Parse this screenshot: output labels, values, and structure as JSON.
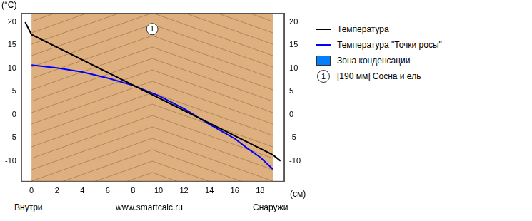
{
  "chart_data": {
    "type": "line",
    "x_label": "(см)",
    "y_label": "(°C)",
    "bottom_labels": [
      "Внутри",
      "www.smartcalc.ru",
      "Снаружи"
    ],
    "xlim": [
      -0.8,
      19.9
    ],
    "xticks": [
      0,
      2,
      4,
      6,
      8,
      10,
      12,
      14,
      16,
      18
    ],
    "ylim": [
      -14.5,
      22
    ],
    "yticks": [
      -10,
      -5,
      0,
      5,
      10,
      15,
      20
    ],
    "grid": false,
    "legend": "right",
    "series": [
      {
        "name": "Температура",
        "color": "#000000",
        "type": "line",
        "x": [
          -0.5,
          0,
          19,
          19.6
        ],
        "values": [
          20,
          17.3,
          -8.7,
          -10
        ]
      },
      {
        "name": "Температура \"Точки росы\"",
        "color": "#0000ff",
        "type": "line",
        "x": [
          0,
          2,
          4,
          6,
          8,
          10,
          12,
          14,
          16,
          17,
          18,
          19
        ],
        "values": [
          10.7,
          10.1,
          9.2,
          7.9,
          6.3,
          4.1,
          1.3,
          -2.1,
          -5.2,
          -7.3,
          -9.2,
          -11.8
        ]
      },
      {
        "name": "Зона конденсации",
        "color": "#0080ff",
        "type": "area",
        "x": [],
        "values": []
      }
    ],
    "layers": [
      {
        "number": "1",
        "name": "[190 мм] Сосна и ель",
        "from": 0,
        "to": 19,
        "color": "#deb07f"
      }
    ],
    "annotations": [
      {
        "text": "1",
        "x": 9.5,
        "y": 18.5
      }
    ]
  }
}
